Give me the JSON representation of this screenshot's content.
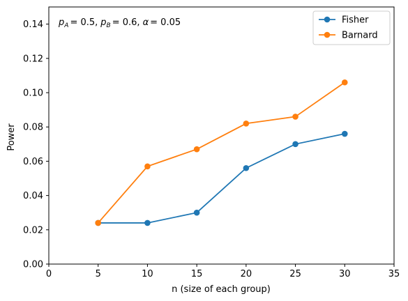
{
  "chart_data": {
    "type": "line",
    "x": [
      5,
      10,
      15,
      20,
      25,
      30
    ],
    "series": [
      {
        "name": "Fisher",
        "color": "#1f77b4",
        "values": [
          0.024,
          0.024,
          0.03,
          0.056,
          0.07,
          0.076
        ]
      },
      {
        "name": "Barnard",
        "color": "#ff7f0e",
        "values": [
          0.024,
          0.057,
          0.067,
          0.082,
          0.086,
          0.106
        ]
      }
    ],
    "xlabel": "n (size of each group)",
    "ylabel": "Power",
    "xlim": [
      0,
      35
    ],
    "ylim": [
      0,
      0.15
    ],
    "xticks": [
      "0",
      "5",
      "10",
      "15",
      "20",
      "25",
      "30",
      "35"
    ],
    "yticks": [
      "0.00",
      "0.02",
      "0.04",
      "0.06",
      "0.08",
      "0.10",
      "0.12",
      "0.14"
    ],
    "annotation": {
      "pa_sub": "A",
      "pa_val": "= 0.5,",
      "pb_sub": "B",
      "pb_val": "= 0.6,",
      "alpha_val": "= 0.05"
    },
    "legend_position": "top-right",
    "grid": false
  }
}
